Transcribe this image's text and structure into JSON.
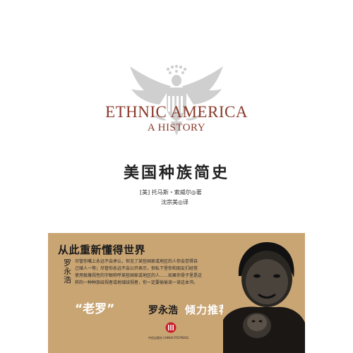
{
  "cover": {
    "title_en_line1": "ETHNIC AMERICA",
    "title_en_line2": "A HISTORY",
    "title_cn": "美国种族简史",
    "author": "[美] 托马斯・索威尔◎著",
    "translator": "沈宗美◎译"
  },
  "band": {
    "heading": "从此重新懂得世界",
    "vertical_name": "罗永浩",
    "blurb_lines": [
      "尽管你嘴上永远不会承认，但见了某些国家或地区的人你会觉得自",
      "己矮人一等；尽管你永远不会公开表示，但私下里你和朋友们经常",
      "使用极蔑视性的字眼称呼某些国家或地区的人……如果你骨子里是这",
      "样的一种种族歧视者或地域歧视者，你一定要偷偷读一读这本书。"
    ],
    "rec_quote": "“老罗”",
    "rec_name": "罗永浩",
    "rec_tail": "倾力推荐！"
  },
  "publisher": {
    "text": "中信出版社·CHINACITICPRESS"
  },
  "colors": {
    "band_bg": "#c9a574",
    "title_en": "#8a3a2a",
    "logo_red": "#c8202a"
  }
}
